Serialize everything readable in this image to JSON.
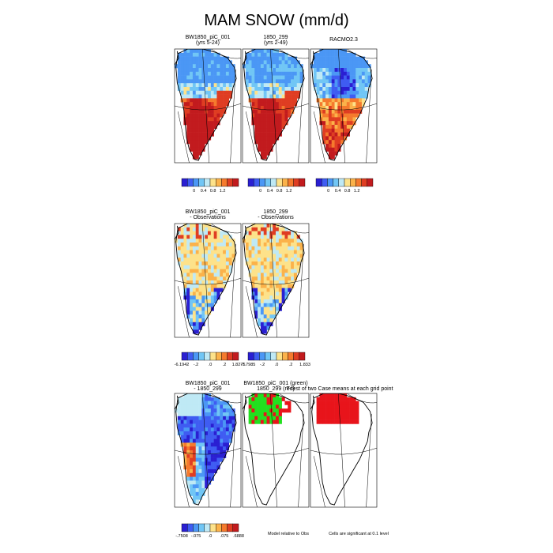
{
  "title": "MAM SNOW (mm/d)",
  "chart_data": {
    "type": "heatmap",
    "title": "MAM SNOW (mm/d)",
    "rows": [
      {
        "panels": [
          {
            "title": [
              "BW1850_piC_001",
              "(yrs 5-24)"
            ],
            "field": "snow_a"
          },
          {
            "title": [
              "1850_299",
              "(yrs 2-49)"
            ],
            "field": "snow_b"
          },
          {
            "title": [
              "RACMO2.3"
            ],
            "field": "snow_obs"
          }
        ],
        "colorbars": [
          {
            "colors": [
              "#2a1fd2",
              "#3f5cf2",
              "#4b97f5",
              "#71c6f5",
              "#bfe9f5",
              "#fde28a",
              "#fbb24a",
              "#f57a2d",
              "#df3d22",
              "#c21b1e"
            ],
            "ticks": [
              "0",
              "0.4",
              "0.8",
              "1.2"
            ]
          },
          {
            "colors": [
              "#2a1fd2",
              "#3f5cf2",
              "#4b97f5",
              "#71c6f5",
              "#bfe9f5",
              "#fde28a",
              "#fbb24a",
              "#f57a2d",
              "#df3d22",
              "#c21b1e"
            ],
            "ticks": [
              "0",
              "0.4",
              "0.8",
              "1.2"
            ]
          },
          {
            "colors": [
              "#2a1fd2",
              "#3f5cf2",
              "#4b97f5",
              "#71c6f5",
              "#bfe9f5",
              "#fde28a",
              "#fbb24a",
              "#f57a2d",
              "#df3d22",
              "#c21b1e"
            ],
            "ticks": [
              "0",
              "0.4",
              "0.8",
              "1.2"
            ]
          }
        ]
      },
      {
        "panels": [
          {
            "title": [
              "BW1850_piC_001",
              "- Observations"
            ],
            "field": "diff_a"
          },
          {
            "title": [
              "1850_299",
              "- Observations"
            ],
            "field": "diff_b"
          }
        ],
        "colorbars": [
          {
            "colors": [
              "#2a1fd2",
              "#3f5cf2",
              "#4b97f5",
              "#71c6f5",
              "#bfe9f5",
              "#fde28a",
              "#fbb24a",
              "#f57a2d",
              "#df3d22",
              "#c21b1e"
            ],
            "ticks": [
              "-6.1942",
              "-.2",
              ".0",
              ".2",
              "1.8275"
            ]
          },
          {
            "colors": [
              "#2a1fd2",
              "#3f5cf2",
              "#4b97f5",
              "#71c6f5",
              "#bfe9f5",
              "#fde28a",
              "#fbb24a",
              "#f57a2d",
              "#df3d22",
              "#c21b1e"
            ],
            "ticks": [
              "-7.7985",
              "-.2",
              ".0",
              ".2",
              "1.833"
            ]
          }
        ]
      },
      {
        "panels": [
          {
            "title": [
              "BW1850_piC_001",
              "- 1850_299"
            ],
            "field": "diff_ab"
          },
          {
            "title": [
              "BW1850_piC_001 (green)",
              "1850_299 (red)"
            ],
            "field": "sig_pair"
          },
          {
            "title": [],
            "field": "sig"
          }
        ],
        "colorbars": [
          {
            "colors": [
              "#2a1fd2",
              "#3f5cf2",
              "#4b97f5",
              "#71c6f5",
              "#bfe9f5",
              "#fde28a",
              "#fbb24a",
              "#f57a2d",
              "#df3d22",
              "#c21b1e"
            ],
            "ticks": [
              "-.7508",
              "-.075",
              ".0",
              ".075",
              ".6888"
            ]
          }
        ],
        "overlay_text": "T-test of two Case means at each grid point",
        "notes": [
          "Model relative to Obs",
          "Cells are significant at 0.1 level"
        ]
      }
    ]
  }
}
